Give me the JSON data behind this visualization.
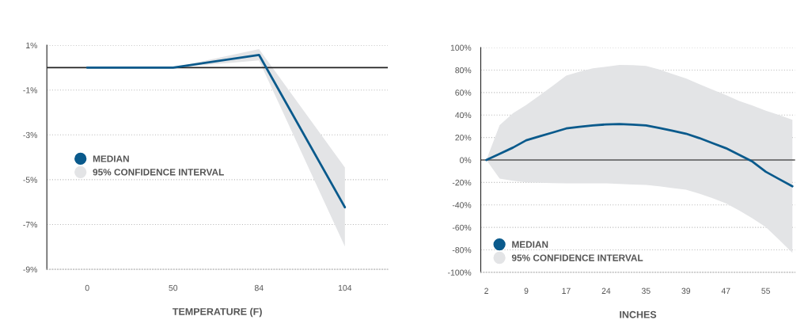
{
  "chart_data": [
    {
      "type": "line",
      "xlabel": "TEMPERATURE (F)",
      "categories": [
        "0",
        "50",
        "84",
        "104"
      ],
      "series": [
        {
          "name": "MEDIAN",
          "color": "#0a5a8c",
          "values": [
            0,
            0,
            0.57,
            -6.23
          ],
          "lower": [
            0,
            0,
            0.32,
            -7.98
          ],
          "upper": [
            0,
            0,
            0.83,
            -4.46
          ]
        }
      ],
      "annotations": [
        "95% CONFIDENCE INTERVAL"
      ],
      "ylim": [
        -9,
        1
      ],
      "yticks": [
        {
          "value": 1,
          "label": "1%"
        },
        {
          "value": -1,
          "label": "-1%"
        },
        {
          "value": -3,
          "label": "-3%"
        },
        {
          "value": -5,
          "label": "-5%"
        },
        {
          "value": -7,
          "label": "-7%"
        },
        {
          "value": -9,
          "label": "-9%"
        }
      ],
      "ref_lines": [
        {
          "axis": "y",
          "value": 0,
          "color": "#222222"
        }
      ],
      "grid": "y",
      "legend": "left",
      "marker": "none",
      "line_style": "solid"
    },
    {
      "type": "line",
      "xlabel": "INCHES",
      "categories": [
        "2",
        null,
        null,
        "9",
        null,
        null,
        "17",
        null,
        null,
        "24",
        null,
        null,
        "35",
        null,
        null,
        "39",
        null,
        null,
        "47",
        null,
        null,
        "55",
        null,
        null
      ],
      "series": [
        {
          "name": "MEDIAN",
          "color": "#0a5a8c",
          "values": [
            0,
            5.5,
            11,
            17.5,
            21,
            24.5,
            28,
            29.5,
            30.8,
            31.6,
            32,
            31.5,
            30.7,
            28.5,
            26,
            23.4,
            19.5,
            15,
            10.5,
            4.5,
            -1.5,
            -10.5,
            -17,
            -23.4
          ],
          "upper": [
            0,
            31,
            41.5,
            49,
            57.5,
            66,
            75,
            78.5,
            81.5,
            83,
            84.5,
            84.3,
            83.6,
            80.5,
            76.5,
            72.6,
            67.5,
            62.5,
            57.8,
            52.5,
            48.5,
            43.8,
            40,
            35.8
          ],
          "lower": [
            0,
            -16.5,
            -18.5,
            -20,
            -20.3,
            -20.6,
            -20.8,
            -20.8,
            -20.8,
            -20.8,
            -21.3,
            -21.8,
            -22.2,
            -23.5,
            -25,
            -26.5,
            -30,
            -34,
            -38.6,
            -45,
            -52,
            -59.7,
            -71,
            -82.7
          ]
        }
      ],
      "annotations": [
        "95% CONFIDENCE INTERVAL"
      ],
      "ylim": [
        -100,
        100
      ],
      "yticks": [
        {
          "value": 100,
          "label": "100%"
        },
        {
          "value": 80,
          "label": "80%"
        },
        {
          "value": 60,
          "label": "60%"
        },
        {
          "value": 40,
          "label": "40%"
        },
        {
          "value": 20,
          "label": "20%"
        },
        {
          "value": 0,
          "label": "0%"
        },
        {
          "value": -20,
          "label": "-20%"
        },
        {
          "value": -40,
          "label": "-40%"
        },
        {
          "value": -60,
          "label": "-60%"
        },
        {
          "value": -80,
          "label": "-80%"
        },
        {
          "value": -100,
          "label": "-100%"
        }
      ],
      "ref_lines": [
        {
          "axis": "y",
          "value": 0,
          "color": "#555555"
        }
      ],
      "grid": "y",
      "legend": "bottom left",
      "marker": "none",
      "line_style": "solid"
    }
  ]
}
